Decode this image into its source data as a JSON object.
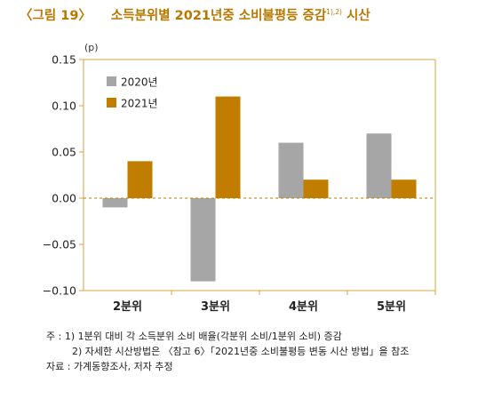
{
  "figure_label": "〈그림 19〉",
  "title": "소득분위별 2021년중 소비불평등 증감",
  "title_sup": "1),2)",
  "title_suffix": " 시산",
  "chart_data": {
    "type": "bar",
    "unit_label": "(p)",
    "categories": [
      "2분위",
      "3분위",
      "4분위",
      "5분위"
    ],
    "series": [
      {
        "name": "2020년",
        "values": [
          -0.01,
          -0.09,
          0.06,
          0.07
        ],
        "color": "#a6a6a6"
      },
      {
        "name": "2021년",
        "values": [
          0.04,
          0.11,
          0.02,
          0.02
        ],
        "color": "#c07d00"
      }
    ],
    "ylim": [
      -0.1,
      0.15
    ],
    "yticks": [
      -0.1,
      -0.05,
      0.0,
      0.05,
      0.1,
      0.15
    ],
    "ytick_labels": [
      "−0.10",
      "−0.05",
      "0.00",
      "0.05",
      "0.10",
      "0.15"
    ],
    "grid": false,
    "zero_line": "dashed",
    "legend_position": "top-left",
    "frame_color": "#d9a441"
  },
  "notes": [
    "주 : 1) 1분위 대비 각 소득분위 소비 배율(각분위 소비/1분위 소비) 증감",
    "2) 자세한 시산방법은 〈참고 6〉「2021년중 소비불평등 변동 시산 방법」을 참조",
    "자료 : 가계동향조사, 저자 추정"
  ]
}
